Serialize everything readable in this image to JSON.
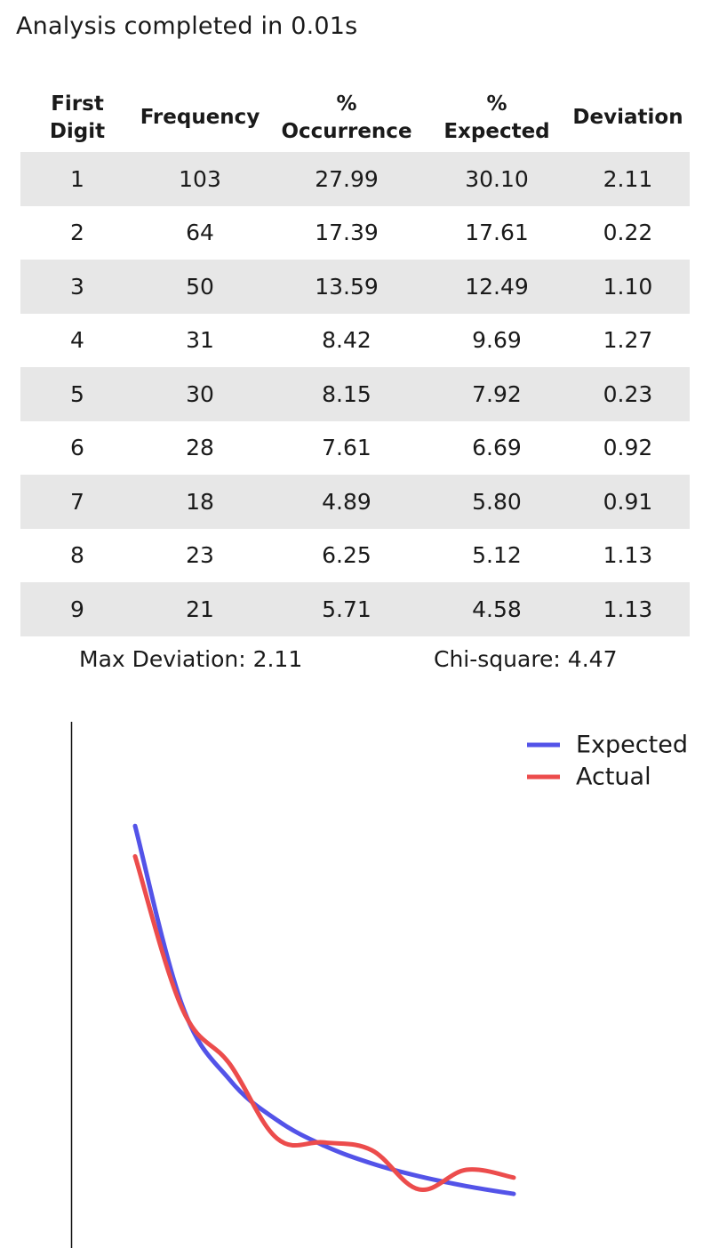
{
  "status": {
    "text": "Analysis completed in 0.01s"
  },
  "table": {
    "headers": {
      "digit_line1": "First",
      "digit_line2": "Digit",
      "frequency": "Frequency",
      "occurrence_line1": "%",
      "occurrence_line2": "Occurrence",
      "expected_line1": "%",
      "expected_line2": "Expected",
      "deviation": "Deviation"
    },
    "rows": [
      {
        "digit": "1",
        "frequency": "103",
        "occurrence": "27.99",
        "expected": "30.10",
        "deviation": "2.11"
      },
      {
        "digit": "2",
        "frequency": "64",
        "occurrence": "17.39",
        "expected": "17.61",
        "deviation": "0.22"
      },
      {
        "digit": "3",
        "frequency": "50",
        "occurrence": "13.59",
        "expected": "12.49",
        "deviation": "1.10"
      },
      {
        "digit": "4",
        "frequency": "31",
        "occurrence": "8.42",
        "expected": "9.69",
        "deviation": "1.27"
      },
      {
        "digit": "5",
        "frequency": "30",
        "occurrence": "8.15",
        "expected": "7.92",
        "deviation": "0.23"
      },
      {
        "digit": "6",
        "frequency": "28",
        "occurrence": "7.61",
        "expected": "6.69",
        "deviation": "0.92"
      },
      {
        "digit": "7",
        "frequency": "18",
        "occurrence": "4.89",
        "expected": "5.80",
        "deviation": "0.91"
      },
      {
        "digit": "8",
        "frequency": "23",
        "occurrence": "6.25",
        "expected": "5.12",
        "deviation": "1.13"
      },
      {
        "digit": "9",
        "frequency": "21",
        "occurrence": "5.71",
        "expected": "4.58",
        "deviation": "1.13"
      }
    ]
  },
  "summary": {
    "max_deviation": "Max Deviation: 2.11",
    "chi_square": "Chi-square: 4.47"
  },
  "chart_data": {
    "type": "line",
    "x": [
      1,
      2,
      3,
      4,
      5,
      6,
      7,
      8,
      9
    ],
    "series": [
      {
        "name": "Expected",
        "color": "#5353e8",
        "values": [
          30.1,
          17.61,
          12.49,
          9.69,
          7.92,
          6.69,
          5.8,
          5.12,
          4.58
        ]
      },
      {
        "name": "Actual",
        "color": "#ec4c4c",
        "values": [
          27.99,
          17.39,
          13.59,
          8.42,
          8.15,
          7.61,
          4.89,
          6.25,
          5.71
        ]
      }
    ],
    "axes_shown": false,
    "legend_position": "top-right"
  }
}
